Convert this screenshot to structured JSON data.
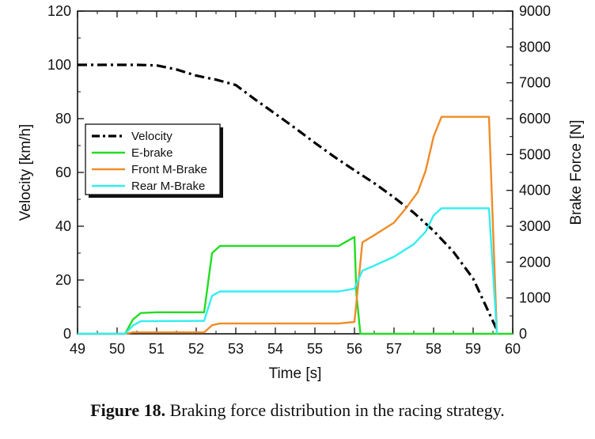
{
  "caption": {
    "label": "Figure 18.",
    "text": "Braking force distribution in the racing strategy."
  },
  "chart_data": {
    "type": "line",
    "xlabel": "Time [s]",
    "ylabel_left": "Velocity [km/h]",
    "ylabel_right": "Brake Force [N]",
    "xlim": [
      49,
      60
    ],
    "ylim_left": [
      0,
      120
    ],
    "ylim_right": [
      0,
      9000
    ],
    "x_ticks": [
      "49",
      "50",
      "51",
      "52",
      "53",
      "54",
      "55",
      "56",
      "57",
      "58",
      "59",
      "60"
    ],
    "y_left_ticks": [
      "0",
      "20",
      "40",
      "60",
      "80",
      "100",
      "120"
    ],
    "y_right_ticks": [
      "0",
      "1000",
      "2000",
      "3000",
      "4000",
      "5000",
      "6000",
      "7000",
      "8000",
      "9000"
    ],
    "legend_placement": "center-left",
    "grid": false,
    "series": [
      {
        "name": "Velocity",
        "axis": "left",
        "color": "#000000",
        "style": "dash-dot",
        "x": [
          49,
          50.5,
          51.0,
          51.5,
          52.0,
          52.5,
          53.0,
          53.5,
          54.0,
          54.5,
          55.0,
          55.5,
          56.0,
          56.5,
          57.0,
          57.5,
          58.0,
          58.5,
          59.0,
          59.3,
          59.6
        ],
        "y": [
          100,
          100,
          99.8,
          98.3,
          96,
          94.5,
          92.5,
          87,
          81.8,
          76.5,
          71,
          65.7,
          60.8,
          56,
          50.7,
          45,
          38.3,
          30.5,
          20.5,
          11,
          1.5
        ]
      },
      {
        "name": "E-brake",
        "axis": "right",
        "color": "#22dd22",
        "style": "solid",
        "x": [
          49,
          50.2,
          50.4,
          50.6,
          51.0,
          52.2,
          52.4,
          52.6,
          55.6,
          56.0,
          56.05,
          56.15,
          60
        ],
        "y": [
          0,
          0,
          400,
          580,
          600,
          600,
          2250,
          2450,
          2450,
          2700,
          1100,
          0,
          0
        ]
      },
      {
        "name": "Front M-Brake",
        "axis": "right",
        "color": "#f08c28",
        "style": "solid",
        "x": [
          49,
          50.2,
          50.4,
          52.2,
          52.4,
          52.6,
          55.6,
          56.0,
          56.2,
          56.5,
          57.0,
          57.3,
          57.6,
          57.8,
          58.0,
          58.2,
          59.4,
          59.6
        ],
        "y": [
          0,
          0,
          40,
          40,
          240,
          290,
          290,
          330,
          2550,
          2750,
          3100,
          3500,
          3950,
          4550,
          5500,
          6050,
          6050,
          0
        ]
      },
      {
        "name": "Rear M-Brake",
        "axis": "right",
        "color": "#33eef0",
        "style": "solid",
        "x": [
          49,
          50.2,
          50.4,
          50.6,
          52.2,
          52.4,
          52.6,
          55.6,
          56.0,
          56.2,
          56.5,
          57.0,
          57.5,
          57.8,
          58.0,
          58.2,
          59.4,
          59.6
        ],
        "y": [
          0,
          0,
          230,
          350,
          360,
          1060,
          1180,
          1180,
          1260,
          1760,
          1900,
          2150,
          2500,
          2850,
          3300,
          3500,
          3500,
          0
        ]
      }
    ]
  }
}
